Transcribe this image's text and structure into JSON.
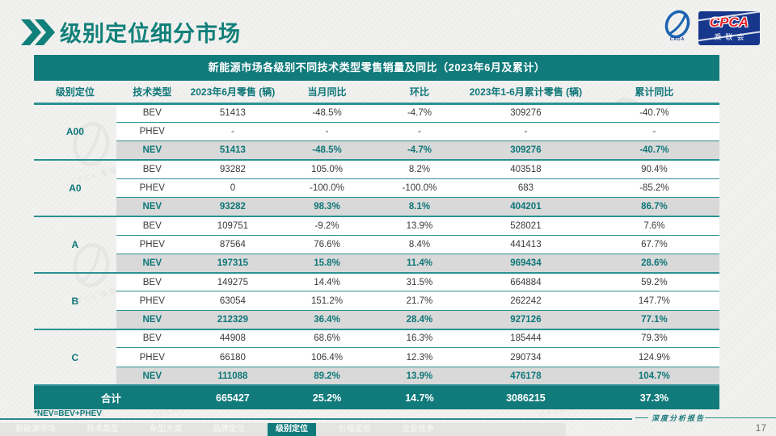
{
  "header": {
    "title": "级别定位细分市场",
    "logo": {
      "cpca": "CPCA",
      "org": "乘联会",
      "cada": "CADA"
    }
  },
  "colors": {
    "teal": "#117a7b",
    "teal_text": "#0e7678",
    "line_teal": "#2b9192",
    "nev_row_bg": "#d9d9d9",
    "logo_blue": "#17378d",
    "logo_red": "#e3242b"
  },
  "table": {
    "title": "新能源市场各级别不同技术类型零售销量及同比（2023年6月及累计）",
    "columns": [
      "级别定位",
      "技术类型",
      "2023年6月零售 (辆)",
      "当月同比",
      "环比",
      "2023年1-6月累计零售 (辆)",
      "累计同比"
    ],
    "groups": [
      {
        "level": "A00",
        "rows": [
          {
            "type": "BEV",
            "values": [
              "51413",
              "-48.5%",
              "-4.7%",
              "309276",
              "-40.7%"
            ]
          },
          {
            "type": "PHEV",
            "values": [
              "-",
              "-",
              "-",
              "-",
              "-"
            ]
          },
          {
            "type": "NEV",
            "values": [
              "51413",
              "-48.5%",
              "-4.7%",
              "309276",
              "-40.7%"
            ]
          }
        ]
      },
      {
        "level": "A0",
        "rows": [
          {
            "type": "BEV",
            "values": [
              "93282",
              "105.0%",
              "8.2%",
              "403518",
              "90.4%"
            ]
          },
          {
            "type": "PHEV",
            "values": [
              "0",
              "-100.0%",
              "-100.0%",
              "683",
              "-85.2%"
            ]
          },
          {
            "type": "NEV",
            "values": [
              "93282",
              "98.3%",
              "8.1%",
              "404201",
              "86.7%"
            ]
          }
        ]
      },
      {
        "level": "A",
        "rows": [
          {
            "type": "BEV",
            "values": [
              "109751",
              "-9.2%",
              "13.9%",
              "528021",
              "7.6%"
            ]
          },
          {
            "type": "PHEV",
            "values": [
              "87564",
              "76.6%",
              "8.4%",
              "441413",
              "67.7%"
            ]
          },
          {
            "type": "NEV",
            "values": [
              "197315",
              "15.8%",
              "11.4%",
              "969434",
              "28.6%"
            ]
          }
        ]
      },
      {
        "level": "B",
        "rows": [
          {
            "type": "BEV",
            "values": [
              "149275",
              "14.4%",
              "31.5%",
              "664884",
              "59.2%"
            ]
          },
          {
            "type": "PHEV",
            "values": [
              "63054",
              "151.2%",
              "21.7%",
              "262242",
              "147.7%"
            ]
          },
          {
            "type": "NEV",
            "values": [
              "212329",
              "36.4%",
              "28.4%",
              "927126",
              "77.1%"
            ]
          }
        ]
      },
      {
        "level": "C",
        "rows": [
          {
            "type": "BEV",
            "values": [
              "44908",
              "68.6%",
              "16.3%",
              "185444",
              "79.3%"
            ]
          },
          {
            "type": "PHEV",
            "values": [
              "66180",
              "106.4%",
              "12.3%",
              "290734",
              "124.9%"
            ]
          },
          {
            "type": "NEV",
            "values": [
              "111088",
              "89.2%",
              "13.9%",
              "476178",
              "104.7%"
            ]
          }
        ]
      }
    ],
    "total": {
      "label": "合计",
      "values": [
        "665427",
        "25.2%",
        "14.7%",
        "3086215",
        "37.3%"
      ]
    }
  },
  "footnote": "*NEV=BEV+PHEV",
  "footer": {
    "report_label": "深度分析报告",
    "page_number": "17",
    "nav": [
      {
        "label": "新能源市场",
        "active": false
      },
      {
        "label": "技术类型",
        "active": false
      },
      {
        "label": "车型大类",
        "active": false
      },
      {
        "label": "品牌定位",
        "active": false
      },
      {
        "label": "级别定位",
        "active": true
      },
      {
        "label": "价格定位",
        "active": false
      },
      {
        "label": "企业竞争",
        "active": false
      }
    ]
  },
  "watermark_text": "CPCA 乘联会"
}
